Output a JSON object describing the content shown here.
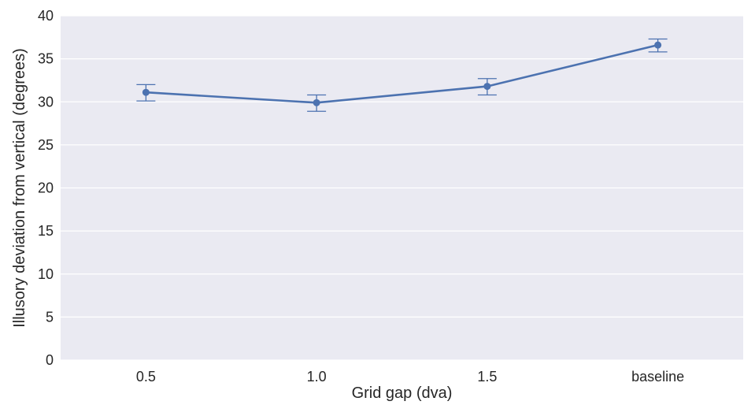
{
  "chart_data": {
    "type": "line",
    "categories": [
      "0.5",
      "1.0",
      "1.5",
      "baseline"
    ],
    "series": [
      {
        "values": [
          31.1,
          29.9,
          31.8,
          36.6
        ],
        "error_low": [
          30.1,
          28.9,
          30.8,
          35.8
        ],
        "error_high": [
          32.0,
          30.8,
          32.7,
          37.3
        ]
      }
    ],
    "xlabel": "Grid gap (dva)",
    "ylabel": "Illusory deviation from vertical (degrees)",
    "ylim": [
      0,
      40
    ],
    "yticks": [
      0,
      5,
      10,
      15,
      20,
      25,
      30,
      35,
      40
    ],
    "grid": true,
    "colors": {
      "background": "#EAEAF2",
      "grid": "#FFFFFF",
      "line": "#4C72B0"
    }
  }
}
